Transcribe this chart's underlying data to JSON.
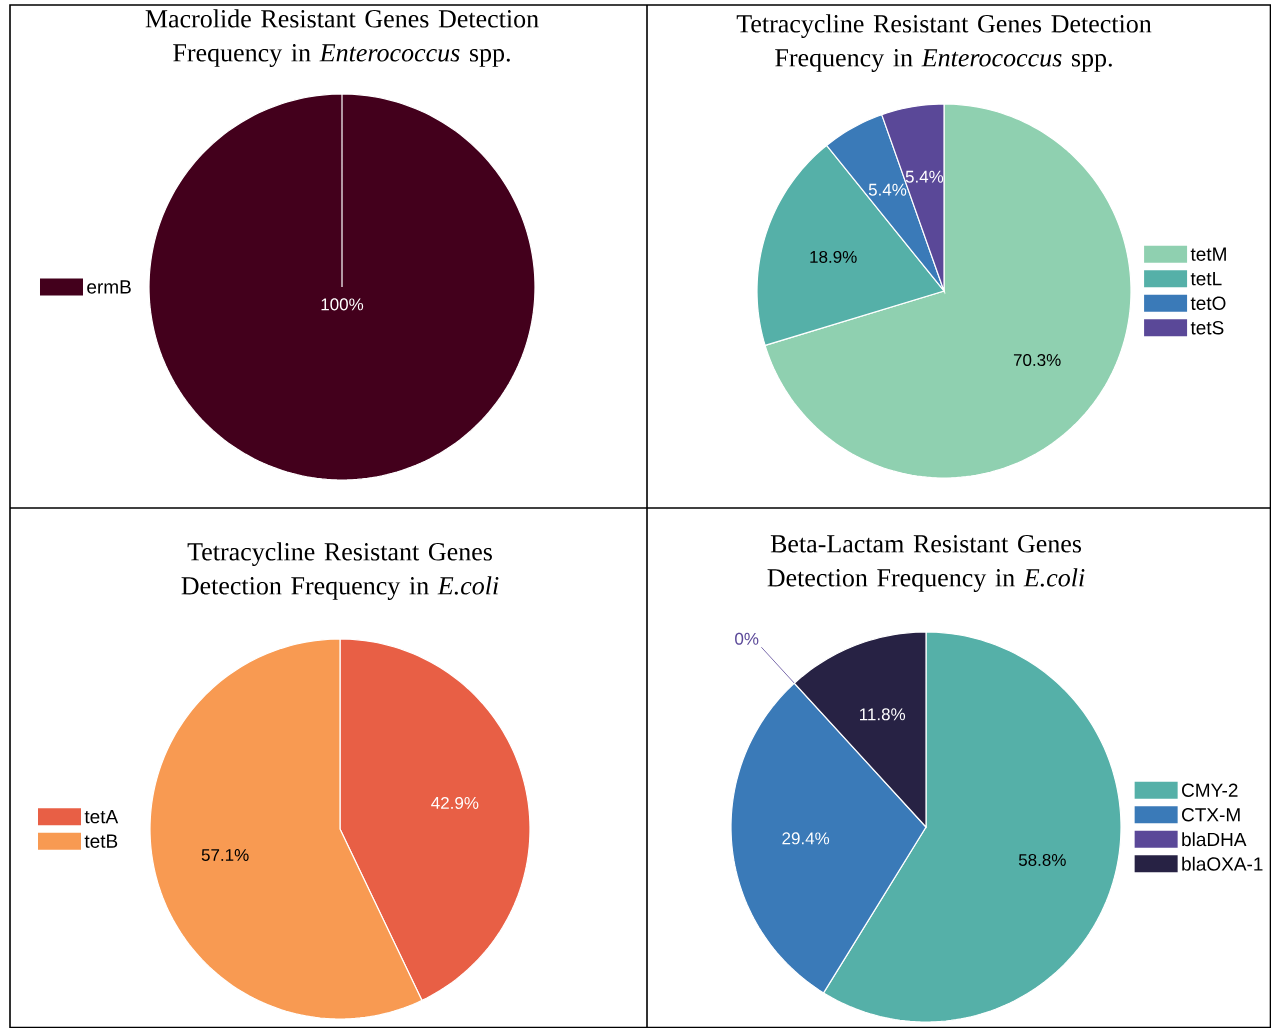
{
  "chart_data": [
    {
      "type": "pie",
      "title": "Macrolide Resistant Genes Detection Frequency in *Enterococcus* spp.",
      "categories": [
        "ermB"
      ],
      "values": [
        100
      ],
      "colors": [
        "#43001c"
      ],
      "value_labels": [
        "100%"
      ],
      "legend": "left"
    },
    {
      "type": "pie",
      "title": "Tetracycline Resistant Genes Detection Frequency in *Enterococcus* spp.",
      "categories": [
        "tetM",
        "tetL",
        "tetO",
        "tetS"
      ],
      "values": [
        70.3,
        18.9,
        5.4,
        5.4
      ],
      "colors": [
        "#8fd0b0",
        "#55b0a8",
        "#3a7ab8",
        "#5a4898"
      ],
      "value_labels": [
        "70.3%",
        "18.9%",
        "5.4%",
        "5.4%"
      ],
      "legend": "right"
    },
    {
      "type": "pie",
      "title": "Tetracycline Resistant Genes Detection Frequency in *E.coli*",
      "categories": [
        "tetA",
        "tetB"
      ],
      "values": [
        42.9,
        57.1
      ],
      "colors": [
        "#e85f45",
        "#f89a52"
      ],
      "value_labels": [
        "42.9%",
        "57.1%"
      ],
      "legend": "left"
    },
    {
      "type": "pie",
      "title": "Beta-Lactam Resistant Genes Detection Frequency in *E.coli*",
      "categories": [
        "CMY-2",
        "CTX-M",
        "blaDHA",
        "blaOXA-1"
      ],
      "values": [
        58.8,
        29.4,
        0,
        11.8
      ],
      "colors": [
        "#55b0a8",
        "#3a7ab8",
        "#5a4898",
        "#272244"
      ],
      "value_labels": [
        "58.8%",
        "29.4%",
        "0%",
        "11.8%"
      ],
      "legend": "right"
    }
  ]
}
